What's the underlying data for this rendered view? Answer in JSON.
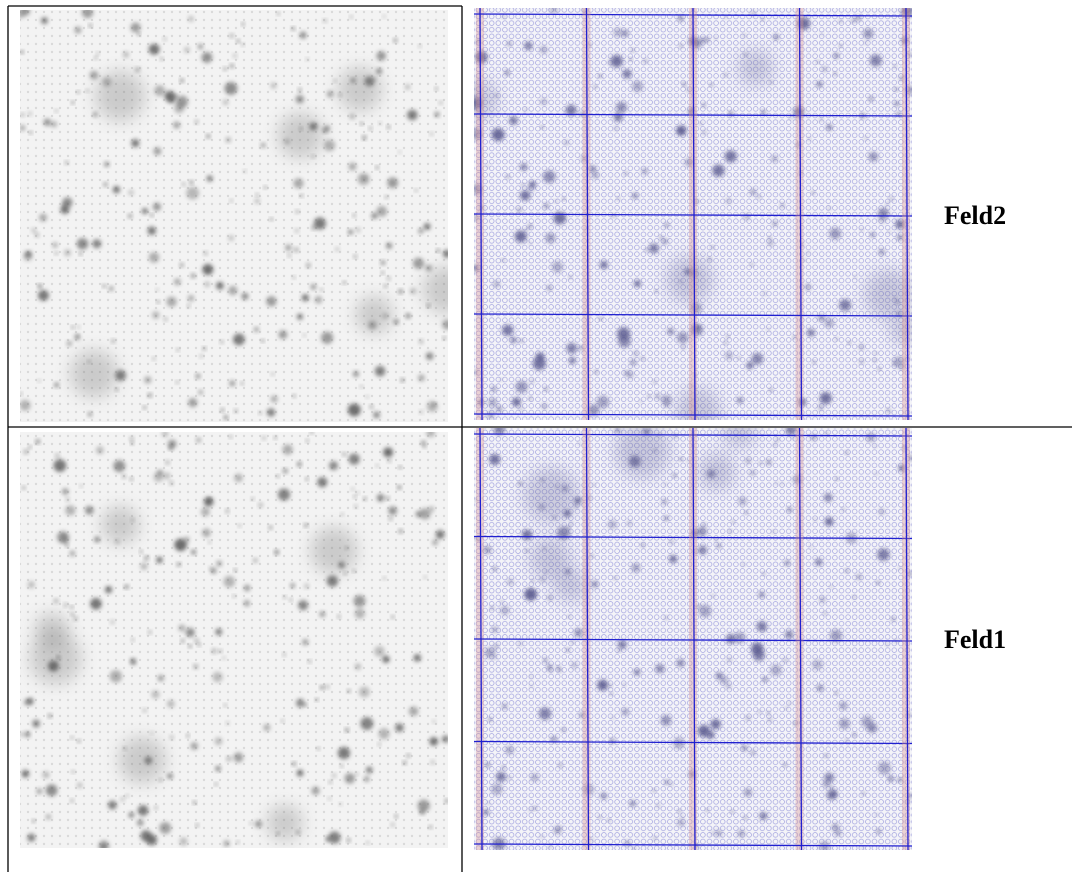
{
  "table": {
    "rows": [
      {
        "label": "Feld2"
      },
      {
        "label": "Feld1"
      }
    ]
  }
}
